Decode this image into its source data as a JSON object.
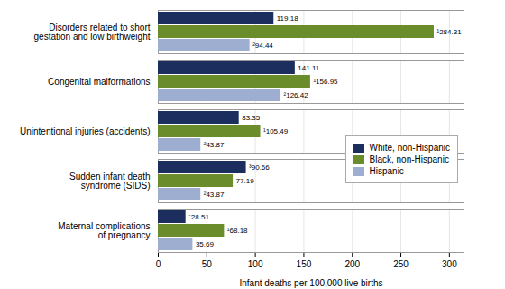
{
  "chart_data": {
    "type": "bar",
    "orientation": "horizontal",
    "categories": [
      "Disorders related to short\ngestation and low birthweight",
      "Congenital malformations",
      "Unintentional injuries (accidents)",
      "Sudden infant death\nsyndrome (SIDS)",
      "Maternal complications\nof pregnancy"
    ],
    "series": [
      {
        "name": "White, non-Hispanic",
        "color": "#1b2e5e",
        "values": [
          119.18,
          141.11,
          83.35,
          90.66,
          28.51
        ],
        "value_labels": [
          "119.18",
          "141.11",
          "83.35",
          "³90.66",
          "´28.51"
        ]
      },
      {
        "name": "Black, non-Hispanic",
        "color": "#6b8c2a",
        "values": [
          284.31,
          156.95,
          105.49,
          77.19,
          68.18
        ],
        "value_labels": [
          "¹284.31",
          "¹156.95",
          "¹105.49",
          "77.19",
          "¹68.18"
        ]
      },
      {
        "name": "Hispanic",
        "color": "#9daed0",
        "values": [
          94.44,
          126.42,
          43.87,
          43.87,
          35.69
        ],
        "value_labels": [
          "²94.44",
          "²126.42",
          "²43.87",
          "²43.87",
          "35.69"
        ]
      }
    ],
    "xlabel": "Infant deaths per 100,000 live births",
    "xlim": [
      0,
      315
    ],
    "xticks": [
      0,
      50,
      100,
      150,
      200,
      250,
      300
    ],
    "grid": true,
    "legend": "right",
    "data_labels": true
  }
}
